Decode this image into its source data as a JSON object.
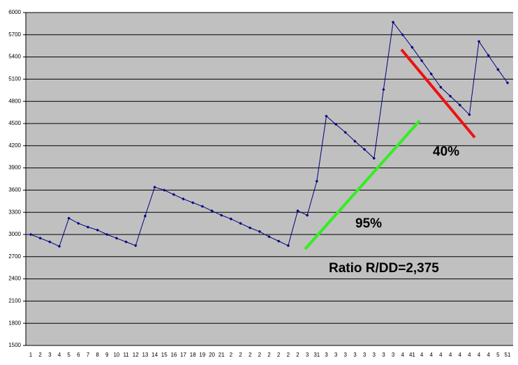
{
  "chart_data": {
    "type": "line",
    "categories": [
      "1",
      "2",
      "3",
      "4",
      "5",
      "6",
      "7",
      "8",
      "9",
      "10",
      "11",
      "12",
      "13",
      "14",
      "15",
      "16",
      "17",
      "18",
      "19",
      "20",
      "21",
      "2",
      "2",
      "2",
      "2",
      "2",
      "2",
      "2",
      "2",
      "3",
      "31",
      "3",
      "3",
      "3",
      "3",
      "3",
      "3",
      "3",
      "3",
      "4",
      "41",
      "4",
      "4",
      "4",
      "4",
      "4",
      "4",
      "4",
      "4",
      "5",
      "51"
    ],
    "values": [
      3000,
      2950,
      2900,
      2840,
      3220,
      3150,
      3100,
      3060,
      3000,
      2950,
      2900,
      2850,
      3250,
      3640,
      3600,
      3540,
      3480,
      3430,
      3380,
      3320,
      3260,
      3210,
      3150,
      3090,
      3040,
      2970,
      2910,
      2850,
      3320,
      3260,
      3720,
      4600,
      4490,
      4380,
      4260,
      4150,
      4030,
      4960,
      5870,
      5700,
      5530,
      5350,
      5170,
      4990,
      4870,
      4750,
      4620,
      5610,
      5420,
      5230,
      5050
    ],
    "color": "#000080",
    "ylim": [
      1500,
      6000
    ],
    "yticks": [
      1500,
      1800,
      2100,
      2400,
      2700,
      3000,
      3300,
      3600,
      3900,
      4200,
      4500,
      4800,
      5100,
      5400,
      5700,
      6000
    ],
    "grid": true,
    "annotations": [
      "95%",
      "40%",
      "Ratio R/DD=2,375"
    ]
  }
}
